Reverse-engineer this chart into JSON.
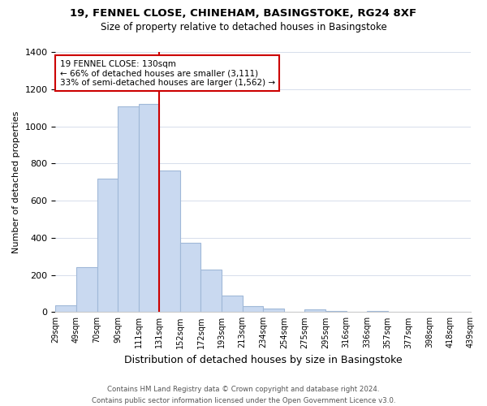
{
  "title1": "19, FENNEL CLOSE, CHINEHAM, BASINGSTOKE, RG24 8XF",
  "title2": "Size of property relative to detached houses in Basingstoke",
  "xlabel": "Distribution of detached houses by size in Basingstoke",
  "ylabel": "Number of detached properties",
  "bin_labels": [
    "29sqm",
    "49sqm",
    "70sqm",
    "90sqm",
    "111sqm",
    "131sqm",
    "152sqm",
    "172sqm",
    "193sqm",
    "213sqm",
    "234sqm",
    "254sqm",
    "275sqm",
    "295sqm",
    "316sqm",
    "336sqm",
    "357sqm",
    "377sqm",
    "398sqm",
    "418sqm",
    "439sqm"
  ],
  "bar_values": [
    35,
    240,
    720,
    1105,
    1120,
    760,
    375,
    230,
    90,
    30,
    20,
    0,
    15,
    5,
    0,
    5,
    0,
    0,
    0,
    0
  ],
  "bar_color": "#c9d9f0",
  "bar_edge_color": "#a0b8d8",
  "vline_color": "#cc0000",
  "annotation_title": "19 FENNEL CLOSE: 130sqm",
  "annotation_line1": "← 66% of detached houses are smaller (3,111)",
  "annotation_line2": "33% of semi-detached houses are larger (1,562) →",
  "annotation_box_color": "#ffffff",
  "annotation_box_edge": "#cc0000",
  "ylim": [
    0,
    1400
  ],
  "yticks": [
    0,
    200,
    400,
    600,
    800,
    1000,
    1200,
    1400
  ],
  "footer1": "Contains HM Land Registry data © Crown copyright and database right 2024.",
  "footer2": "Contains public sector information licensed under the Open Government Licence v3.0."
}
